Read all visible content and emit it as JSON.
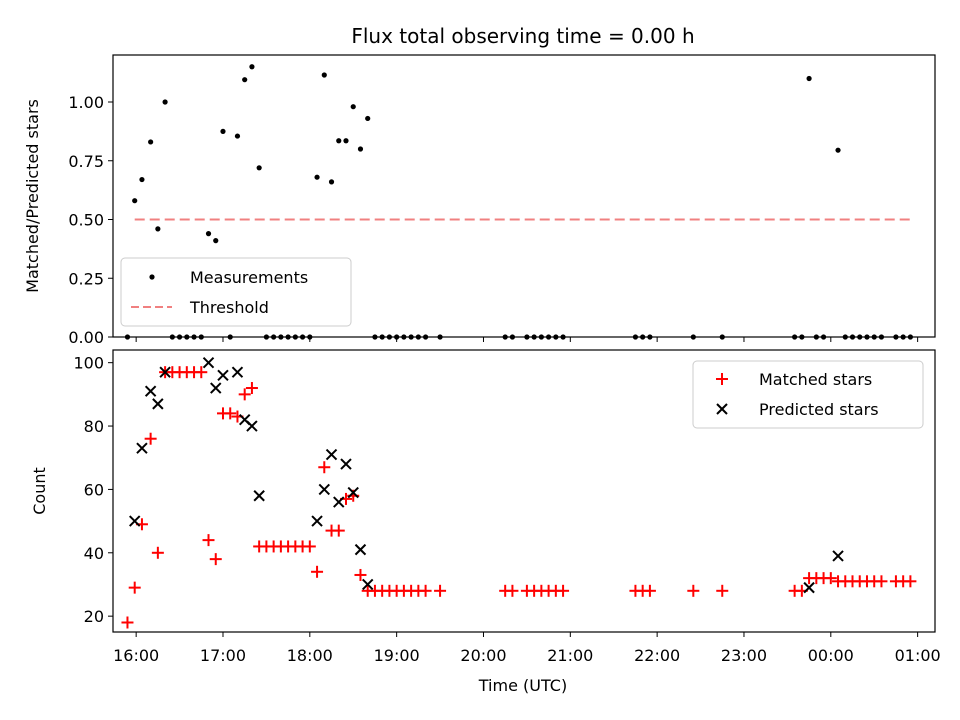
{
  "chart_data": [
    {
      "type": "scatter",
      "title": "Flux total observing time = 0.00 h",
      "xlabel": "",
      "ylabel": "Matched/Predicted stars",
      "ylim": [
        0,
        1.2
      ],
      "xlim": [
        "15:44",
        "01:12"
      ],
      "y_ticks": [
        0.0,
        0.25,
        0.5,
        0.75,
        1.0
      ],
      "y_tick_labels": [
        "0.00",
        "0.25",
        "0.50",
        "0.75",
        "1.00"
      ],
      "legend_position": "lower-left",
      "legend": [
        {
          "label": "Measurements",
          "marker": "dot",
          "color": "#000000"
        },
        {
          "label": "Threshold",
          "marker": "dashed-line",
          "color": "#f08080"
        }
      ],
      "threshold": {
        "name": "Threshold",
        "y": 0.5,
        "x_start": "15:59",
        "x_end": "00:55",
        "color": "#f08080"
      },
      "series": [
        {
          "name": "Measurements",
          "color": "#000000",
          "points": [
            [
              "15:54",
              0.0
            ],
            [
              "15:59",
              0.58
            ],
            [
              "16:04",
              0.67
            ],
            [
              "16:10",
              0.83
            ],
            [
              "16:15",
              0.46
            ],
            [
              "16:20",
              1.0
            ],
            [
              "16:25",
              0.0
            ],
            [
              "16:30",
              0.0
            ],
            [
              "16:35",
              0.0
            ],
            [
              "16:40",
              0.0
            ],
            [
              "16:45",
              0.0
            ],
            [
              "16:50",
              0.44
            ],
            [
              "16:55",
              0.41
            ],
            [
              "17:00",
              0.875
            ],
            [
              "17:05",
              0.0
            ],
            [
              "17:10",
              0.855
            ],
            [
              "17:15",
              1.095
            ],
            [
              "17:20",
              1.15
            ],
            [
              "17:25",
              0.72
            ],
            [
              "17:30",
              0.0
            ],
            [
              "17:35",
              0.0
            ],
            [
              "17:40",
              0.0
            ],
            [
              "17:45",
              0.0
            ],
            [
              "17:50",
              0.0
            ],
            [
              "17:55",
              0.0
            ],
            [
              "18:00",
              0.0
            ],
            [
              "18:05",
              0.68
            ],
            [
              "18:10",
              1.115
            ],
            [
              "18:15",
              0.66
            ],
            [
              "18:20",
              0.835
            ],
            [
              "18:25",
              0.835
            ],
            [
              "18:30",
              0.98
            ],
            [
              "18:35",
              0.8
            ],
            [
              "18:40",
              0.93
            ],
            [
              "18:45",
              0.0
            ],
            [
              "18:50",
              0.0
            ],
            [
              "18:55",
              0.0
            ],
            [
              "19:00",
              0.0
            ],
            [
              "19:05",
              0.0
            ],
            [
              "19:10",
              0.0
            ],
            [
              "19:15",
              0.0
            ],
            [
              "19:20",
              0.0
            ],
            [
              "19:30",
              0.0
            ],
            [
              "20:15",
              0.0
            ],
            [
              "20:20",
              0.0
            ],
            [
              "20:30",
              0.0
            ],
            [
              "20:35",
              0.0
            ],
            [
              "20:40",
              0.0
            ],
            [
              "20:45",
              0.0
            ],
            [
              "20:50",
              0.0
            ],
            [
              "20:55",
              0.0
            ],
            [
              "21:45",
              0.0
            ],
            [
              "21:50",
              0.0
            ],
            [
              "21:55",
              0.0
            ],
            [
              "22:25",
              0.0
            ],
            [
              "22:45",
              0.0
            ],
            [
              "23:35",
              0.0
            ],
            [
              "23:40",
              0.0
            ],
            [
              "23:45",
              1.1
            ],
            [
              "23:50",
              0.0
            ],
            [
              "23:55",
              0.0
            ],
            [
              "00:05",
              0.795
            ],
            [
              "00:10",
              0.0
            ],
            [
              "00:15",
              0.0
            ],
            [
              "00:20",
              0.0
            ],
            [
              "00:25",
              0.0
            ],
            [
              "00:30",
              0.0
            ],
            [
              "00:35",
              0.0
            ],
            [
              "00:45",
              0.0
            ],
            [
              "00:50",
              0.0
            ],
            [
              "00:55",
              0.0
            ]
          ]
        }
      ]
    },
    {
      "type": "scatter",
      "title": "",
      "xlabel": "Time (UTC)",
      "ylabel": "Count",
      "ylim": [
        15,
        104
      ],
      "xlim": [
        "15:44",
        "01:12"
      ],
      "y_ticks": [
        20,
        40,
        60,
        80,
        100
      ],
      "y_tick_labels": [
        "20",
        "40",
        "60",
        "80",
        "100"
      ],
      "x_ticks": [
        "16:00",
        "17:00",
        "18:00",
        "19:00",
        "20:00",
        "21:00",
        "22:00",
        "23:00",
        "00:00",
        "01:00"
      ],
      "x_tick_labels": [
        "16:00",
        "17:00",
        "18:00",
        "19:00",
        "20:00",
        "21:00",
        "22:00",
        "23:00",
        "00:00",
        "01:00"
      ],
      "legend_position": "upper-right",
      "legend": [
        {
          "label": "Matched stars",
          "marker": "plus",
          "color": "#ff0000"
        },
        {
          "label": "Predicted stars",
          "marker": "x",
          "color": "#000000"
        }
      ],
      "series": [
        {
          "name": "Matched stars",
          "color": "#ff0000",
          "points": [
            [
              "15:54",
              18
            ],
            [
              "15:59",
              29
            ],
            [
              "16:04",
              49
            ],
            [
              "16:10",
              76
            ],
            [
              "16:15",
              40
            ],
            [
              "16:20",
              97
            ],
            [
              "16:25",
              97
            ],
            [
              "16:30",
              97
            ],
            [
              "16:35",
              97
            ],
            [
              "16:40",
              97
            ],
            [
              "16:45",
              97
            ],
            [
              "16:50",
              44
            ],
            [
              "16:55",
              38
            ],
            [
              "17:00",
              84
            ],
            [
              "17:05",
              84
            ],
            [
              "17:10",
              83
            ],
            [
              "17:15",
              90
            ],
            [
              "17:20",
              92
            ],
            [
              "17:25",
              42
            ],
            [
              "17:30",
              42
            ],
            [
              "17:35",
              42
            ],
            [
              "17:40",
              42
            ],
            [
              "17:45",
              42
            ],
            [
              "17:50",
              42
            ],
            [
              "17:55",
              42
            ],
            [
              "18:00",
              42
            ],
            [
              "18:05",
              34
            ],
            [
              "18:10",
              67
            ],
            [
              "18:15",
              47
            ],
            [
              "18:20",
              47
            ],
            [
              "18:25",
              57
            ],
            [
              "18:30",
              58
            ],
            [
              "18:35",
              33
            ],
            [
              "18:40",
              28
            ],
            [
              "18:45",
              28
            ],
            [
              "18:50",
              28
            ],
            [
              "18:55",
              28
            ],
            [
              "19:00",
              28
            ],
            [
              "19:05",
              28
            ],
            [
              "19:10",
              28
            ],
            [
              "19:15",
              28
            ],
            [
              "19:20",
              28
            ],
            [
              "19:30",
              28
            ],
            [
              "20:15",
              28
            ],
            [
              "20:20",
              28
            ],
            [
              "20:30",
              28
            ],
            [
              "20:35",
              28
            ],
            [
              "20:40",
              28
            ],
            [
              "20:45",
              28
            ],
            [
              "20:50",
              28
            ],
            [
              "20:55",
              28
            ],
            [
              "21:45",
              28
            ],
            [
              "21:50",
              28
            ],
            [
              "21:55",
              28
            ],
            [
              "22:25",
              28
            ],
            [
              "22:45",
              28
            ],
            [
              "23:35",
              28
            ],
            [
              "23:40",
              28
            ],
            [
              "23:45",
              32
            ],
            [
              "23:50",
              32
            ],
            [
              "23:55",
              32
            ],
            [
              "00:00",
              32
            ],
            [
              "00:05",
              31
            ],
            [
              "00:10",
              31
            ],
            [
              "00:15",
              31
            ],
            [
              "00:20",
              31
            ],
            [
              "00:25",
              31
            ],
            [
              "00:30",
              31
            ],
            [
              "00:35",
              31
            ],
            [
              "00:45",
              31
            ],
            [
              "00:50",
              31
            ],
            [
              "00:55",
              31
            ]
          ]
        },
        {
          "name": "Predicted stars",
          "color": "#000000",
          "points": [
            [
              "15:59",
              50
            ],
            [
              "16:04",
              73
            ],
            [
              "16:10",
              91
            ],
            [
              "16:15",
              87
            ],
            [
              "16:20",
              97
            ],
            [
              "16:50",
              100
            ],
            [
              "16:55",
              92
            ],
            [
              "17:00",
              96
            ],
            [
              "17:10",
              97
            ],
            [
              "17:15",
              82
            ],
            [
              "17:20",
              80
            ],
            [
              "17:25",
              58
            ],
            [
              "18:05",
              50
            ],
            [
              "18:10",
              60
            ],
            [
              "18:15",
              71
            ],
            [
              "18:20",
              56
            ],
            [
              "18:25",
              68
            ],
            [
              "18:30",
              59
            ],
            [
              "18:35",
              41
            ],
            [
              "18:40",
              30
            ],
            [
              "23:45",
              29
            ],
            [
              "00:05",
              39
            ]
          ]
        }
      ]
    }
  ]
}
